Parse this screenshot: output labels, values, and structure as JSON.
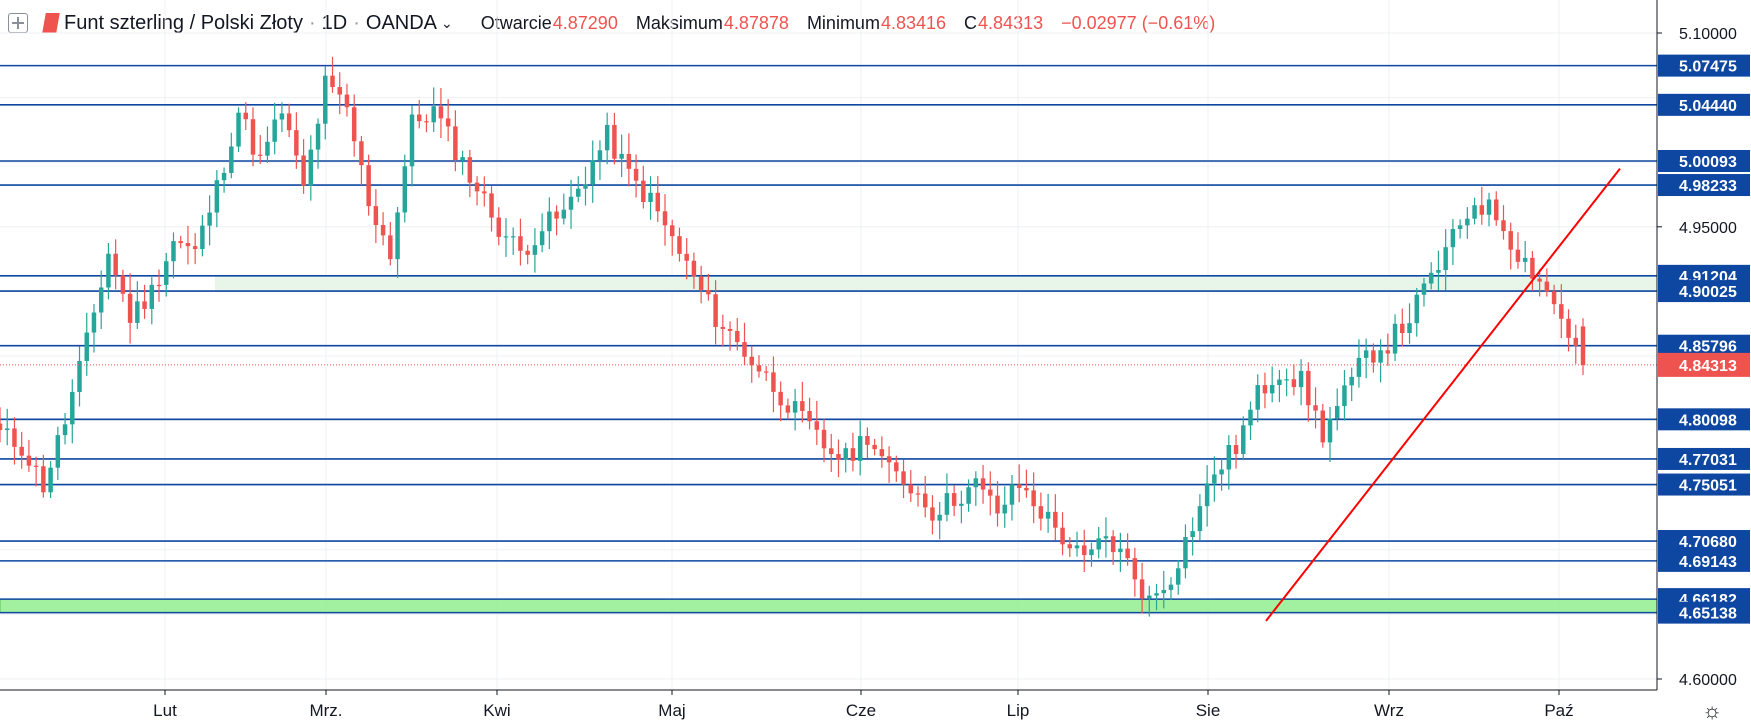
{
  "header": {
    "symbol_name": "Funt szterling / Polski Złoty",
    "interval": "1D",
    "exchange": "OANDA",
    "open_label": "Otwarcie",
    "open_value": "4.87290",
    "high_label": "Maksimum",
    "high_value": "4.87878",
    "low_label": "Minimum",
    "low_value": "4.83416",
    "close_label": "C",
    "close_value": "4.84313",
    "change": "−0.02977 (−0.61%)"
  },
  "colors": {
    "up": "#26a69a",
    "down": "#ef5350",
    "level_line": "#0d47a1",
    "trendline": "#ff0000",
    "support_zone": "#90ee90",
    "resistance_zone": "#e8f5e9",
    "last_price_label": "#ef5350"
  },
  "settings_icon": "gear-icon",
  "chart_data": {
    "type": "candlestick",
    "title": "Funt szterling / Polski Złoty · 1D · OANDA",
    "ylim": [
      4.585,
      5.125
    ],
    "y_ticks": [
      "5.10000",
      "4.95000",
      "4.60000"
    ],
    "x_labels": [
      "Lut",
      "Mrz.",
      "Kwi",
      "Maj",
      "Cze",
      "Lip",
      "Sie",
      "Wrz",
      "Paź"
    ],
    "price_levels": [
      "5.07475",
      "5.04440",
      "5.00093",
      "4.98233",
      "4.91204",
      "4.90025",
      "4.85796",
      "4.80098",
      "4.77031",
      "4.75051",
      "4.70680",
      "4.69143",
      "4.66182",
      "4.65138"
    ],
    "last_price": "4.84313",
    "zones": [
      {
        "name": "resistance-zone",
        "low": 4.90025,
        "high": 4.91204
      },
      {
        "name": "support-zone",
        "low": 4.65138,
        "high": 4.66182
      }
    ],
    "trendline": {
      "start_price": 4.645,
      "end_price": 4.995
    },
    "key_closes": [
      4.79,
      4.78,
      4.75,
      4.8,
      4.86,
      4.93,
      4.88,
      4.9,
      4.94,
      4.93,
      4.98,
      5.04,
      5.0,
      5.04,
      4.98,
      5.06,
      5.04,
      4.97,
      4.93,
      5.03,
      5.04,
      5.01,
      4.98,
      4.95,
      4.93,
      4.95,
      4.96,
      4.99,
      5.02,
      4.99,
      4.97,
      4.94,
      4.91,
      4.88,
      4.86,
      4.84,
      4.82,
      4.8,
      4.78,
      4.77,
      4.79,
      4.76,
      4.75,
      4.73,
      4.74,
      4.75,
      4.73,
      4.75,
      4.73,
      4.71,
      4.69,
      4.71,
      4.69,
      4.66,
      4.68,
      4.72,
      4.76,
      4.78,
      4.82,
      4.84,
      4.83,
      4.79,
      4.82,
      4.85,
      4.86,
      4.88,
      4.91,
      4.94,
      4.97,
      4.96,
      4.93,
      4.91,
      4.88,
      4.843
    ]
  }
}
